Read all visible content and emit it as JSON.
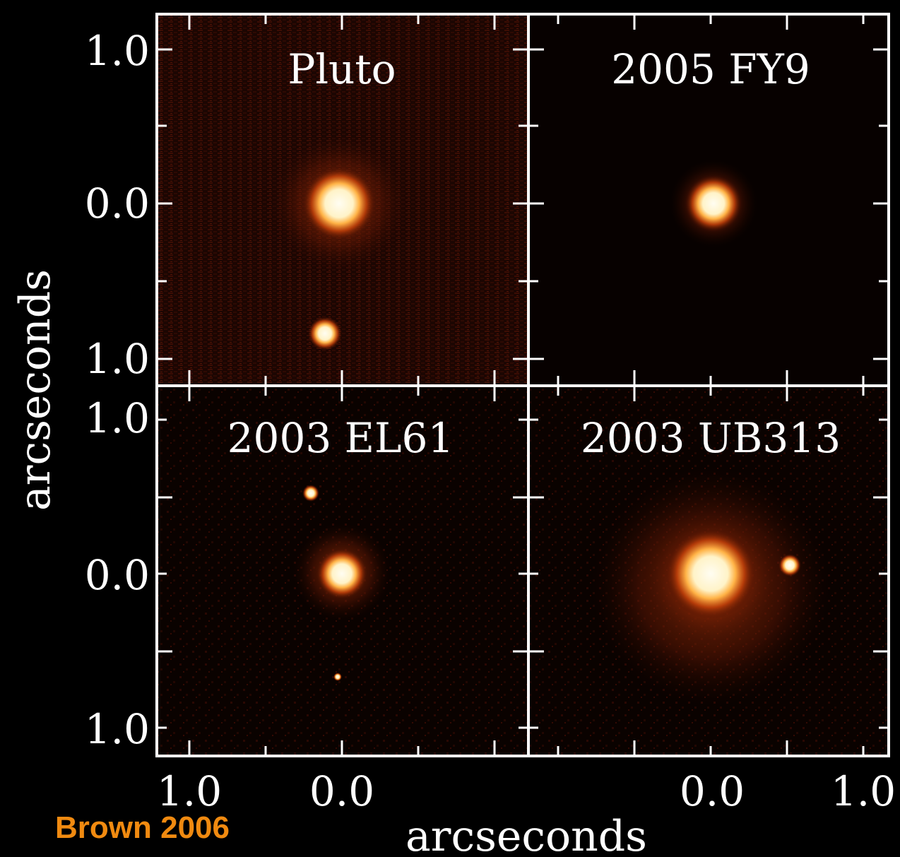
{
  "panels": [
    {
      "name": "Pluto"
    },
    {
      "name": "2005 FY9"
    },
    {
      "name": "2003 EL61"
    },
    {
      "name": "2003 UB313"
    }
  ],
  "axes": {
    "y_label": "arcseconds",
    "x_label": "arcseconds",
    "y_ticks_top": [
      "1.0",
      "0.0",
      "1.0"
    ],
    "y_ticks_bottom": [
      "1.0",
      "0.0",
      "1.0"
    ],
    "x_ticks_left": [
      "1.0",
      "0.0"
    ],
    "x_ticks_right": [
      "0.0",
      "1.0"
    ]
  },
  "credit": "Brown 2006",
  "colors": {
    "background": "#000000",
    "frame": "#ffffff",
    "credit": "#f08a10",
    "glow_core": "#fffbe8",
    "glow_mid": "#ffb347",
    "glow_outer": "#c0400a"
  }
}
